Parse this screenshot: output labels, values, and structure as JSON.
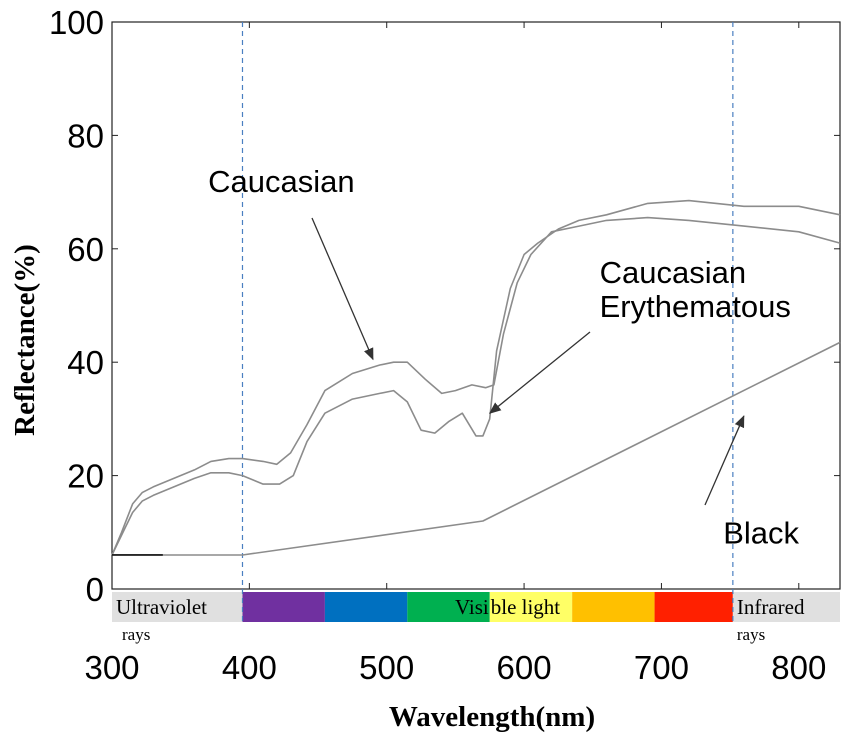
{
  "chart_data": {
    "type": "line",
    "xlabel": "Wavelength(nm)",
    "ylabel": "Reflectance(%)",
    "xlim": [
      300,
      830
    ],
    "ylim": [
      0,
      100
    ],
    "xticks": [
      300,
      400,
      500,
      600,
      700,
      800
    ],
    "yticks": [
      0,
      20,
      40,
      60,
      80,
      100
    ],
    "grid": false,
    "reference_lines_x": [
      395,
      752
    ],
    "series": [
      {
        "name": "Caucasian",
        "color": "#8c8c8c",
        "x": [
          300,
          307,
          315,
          322,
          330,
          345,
          360,
          372,
          385,
          395,
          410,
          420,
          430,
          442,
          455,
          475,
          495,
          505,
          515,
          528,
          540,
          550,
          562,
          572,
          578,
          585,
          595,
          605,
          620,
          640,
          660,
          690,
          720,
          760,
          800,
          830
        ],
        "y": [
          6,
          10,
          15,
          17,
          18,
          19.5,
          21,
          22.5,
          23,
          23,
          22.5,
          22,
          24,
          29,
          35,
          38,
          39.5,
          40,
          40,
          37,
          34.5,
          35,
          36,
          35.5,
          36,
          45,
          54,
          59,
          63,
          64,
          65,
          65.5,
          65,
          64,
          63,
          61
        ]
      },
      {
        "name": "Caucasian Erythematous",
        "color": "#8c8c8c",
        "x": [
          300,
          307,
          315,
          322,
          330,
          345,
          360,
          372,
          385,
          395,
          410,
          422,
          432,
          442,
          455,
          475,
          495,
          505,
          515,
          525,
          535,
          545,
          555,
          565,
          570,
          575,
          580,
          590,
          600,
          610,
          625,
          640,
          660,
          690,
          720,
          760,
          800,
          830
        ],
        "y": [
          6,
          9.5,
          13.5,
          15.5,
          16.5,
          18,
          19.5,
          20.5,
          20.5,
          20,
          18.5,
          18.5,
          20,
          26,
          31,
          33.5,
          34.5,
          35,
          33,
          28,
          27.5,
          29.5,
          31,
          27,
          27,
          30,
          42,
          53,
          59,
          61,
          63.5,
          65,
          66,
          68,
          68.5,
          67.5,
          67.5,
          66
        ]
      },
      {
        "name": "Black",
        "color": "#8c8c8c",
        "x": [
          300,
          395,
          570,
          830
        ],
        "y": [
          6,
          6,
          12,
          43.5
        ]
      }
    ],
    "annotations": [
      {
        "text": "Caucasian",
        "x": 370,
        "y": 70,
        "arrow_to": [
          490,
          40.5
        ]
      },
      {
        "text": "Caucasian",
        "x": 655,
        "y": 54,
        "arrow_to": [
          575,
          31
        ]
      },
      {
        "text": "Erythematous",
        "x": 655,
        "y": 48,
        "arrow_to": [
          575,
          31
        ]
      },
      {
        "text": "Black",
        "x": 745,
        "y": 8,
        "arrow_to": [
          760,
          30.5
        ]
      }
    ],
    "spectrum_bands": [
      {
        "label": "Ultraviolet",
        "sublabel": "rays",
        "from": 300,
        "to": 395,
        "color": "#e0e0e0"
      },
      {
        "label": "",
        "from": 395,
        "to": 455,
        "color": "#7030a0"
      },
      {
        "label": "",
        "from": 455,
        "to": 515,
        "color": "#0070c0"
      },
      {
        "label": "Visi",
        "from": 515,
        "to": 575,
        "color": "#00b050"
      },
      {
        "label": "ble light",
        "from": 575,
        "to": 635,
        "color": "#ffff66"
      },
      {
        "label": "",
        "from": 635,
        "to": 695,
        "color": "#ffc000"
      },
      {
        "label": "",
        "from": 695,
        "to": 752,
        "color": "#ff2000"
      },
      {
        "label": "Infrared",
        "sublabel": "rays",
        "from": 752,
        "to": 830,
        "color": "#e0e0e0"
      }
    ]
  }
}
